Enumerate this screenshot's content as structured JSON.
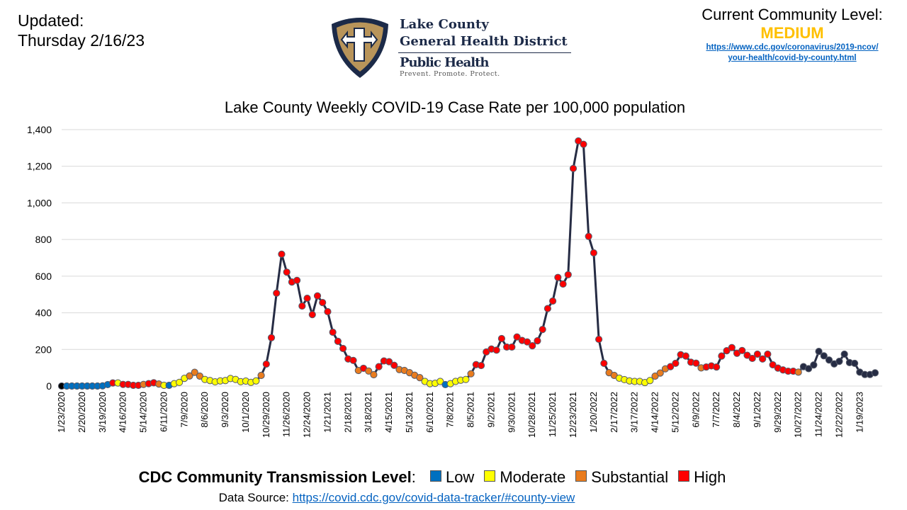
{
  "header": {
    "updated_label": "Updated:",
    "updated_date": "Thursday 2/16/23",
    "logo": {
      "line1": "Lake County",
      "line2": "General Health District",
      "line3": "Public Health",
      "tagline": "Prevent. Promote. Protect.",
      "colors": {
        "navy": "#1c2a48",
        "gold": "#b8945a"
      }
    },
    "community_level_label": "Current Community Level:",
    "community_level_value": "MEDIUM",
    "community_level_color": "#FFC000",
    "cdc_link_line1": "https://www.cdc.gov/coronavirus/2019-ncov/",
    "cdc_link_line2": "your-health/covid-by-county.html"
  },
  "legend": {
    "title": "CDC Community Transmission Level",
    "colon": ":",
    "items": [
      {
        "label": "Low",
        "color": "#0070C0"
      },
      {
        "label": "Moderate",
        "color": "#FFFF00"
      },
      {
        "label": "Substantial",
        "color": "#E97C1E"
      },
      {
        "label": "High",
        "color": "#FF0000"
      }
    ]
  },
  "source": {
    "label": "Data Source: ",
    "link": "https://covid.cdc.gov/covid-data-tracker/#county-view"
  },
  "chart_data": {
    "type": "line",
    "title": "Lake County Weekly COVID-19 Case Rate per 100,000 population",
    "xlabel": "",
    "ylabel": "",
    "ylim": [
      0,
      1400
    ],
    "yticks": [
      "0",
      "200",
      "400",
      "600",
      "800",
      "1,000",
      "1,200",
      "1,400"
    ],
    "ytick_values": [
      0,
      200,
      400,
      600,
      800,
      1000,
      1200,
      1400
    ],
    "grid": "horizontal",
    "line_color": "#262C44",
    "level_colors": {
      "Low": "#0070C0",
      "Moderate": "#FFFF00",
      "Substantial": "#E97C1E",
      "High": "#FF0000",
      "Initial": "#000000",
      "Unassigned": "#262C44"
    },
    "xticks": [
      "1/23/2020",
      "2/20/2020",
      "3/19/2020",
      "4/16/2020",
      "5/14/2020",
      "6/11/2020",
      "7/9/2020",
      "8/6/2020",
      "9/3/2020",
      "10/1/2020",
      "10/29/2020",
      "11/26/2020",
      "12/24/2020",
      "1/21/2021",
      "2/18/2021",
      "3/18/2021",
      "4/15/2021",
      "5/13/2021",
      "6/10/2021",
      "7/8/2021",
      "8/5/2021",
      "9/2/2021",
      "9/30/2021",
      "10/28/2021",
      "11/25/2021",
      "12/23/2021",
      "1/20/2022",
      "2/17/2022",
      "3/17/2022",
      "4/14/2022",
      "5/12/2022",
      "6/9/2022",
      "7/7/2022",
      "8/4/2022",
      "9/1/2022",
      "9/29/2022",
      "10/27/2022",
      "11/24/2022",
      "12/22/2022",
      "1/19/2023"
    ],
    "x": [
      "1/23/2020",
      "1/30/2020",
      "2/6/2020",
      "2/13/2020",
      "2/20/2020",
      "2/27/2020",
      "3/5/2020",
      "3/12/2020",
      "3/19/2020",
      "3/26/2020",
      "4/2/2020",
      "4/9/2020",
      "4/16/2020",
      "4/23/2020",
      "4/30/2020",
      "5/7/2020",
      "5/14/2020",
      "5/21/2020",
      "5/28/2020",
      "6/4/2020",
      "6/11/2020",
      "6/18/2020",
      "6/25/2020",
      "7/2/2020",
      "7/9/2020",
      "7/16/2020",
      "7/23/2020",
      "7/30/2020",
      "8/6/2020",
      "8/13/2020",
      "8/20/2020",
      "8/27/2020",
      "9/3/2020",
      "9/10/2020",
      "9/17/2020",
      "9/24/2020",
      "10/1/2020",
      "10/8/2020",
      "10/15/2020",
      "10/22/2020",
      "10/29/2020",
      "11/5/2020",
      "11/12/2020",
      "11/19/2020",
      "11/26/2020",
      "12/3/2020",
      "12/10/2020",
      "12/17/2020",
      "12/24/2020",
      "12/31/2020",
      "1/7/2021",
      "1/14/2021",
      "1/21/2021",
      "1/28/2021",
      "2/4/2021",
      "2/11/2021",
      "2/18/2021",
      "2/25/2021",
      "3/4/2021",
      "3/11/2021",
      "3/18/2021",
      "3/25/2021",
      "4/1/2021",
      "4/8/2021",
      "4/15/2021",
      "4/22/2021",
      "4/29/2021",
      "5/6/2021",
      "5/13/2021",
      "5/20/2021",
      "5/27/2021",
      "6/3/2021",
      "6/10/2021",
      "6/17/2021",
      "6/24/2021",
      "7/1/2021",
      "7/8/2021",
      "7/15/2021",
      "7/22/2021",
      "7/29/2021",
      "8/5/2021",
      "8/12/2021",
      "8/19/2021",
      "8/26/2021",
      "9/2/2021",
      "9/9/2021",
      "9/16/2021",
      "9/23/2021",
      "9/30/2021",
      "10/7/2021",
      "10/14/2021",
      "10/21/2021",
      "10/28/2021",
      "11/4/2021",
      "11/11/2021",
      "11/18/2021",
      "11/25/2021",
      "12/2/2021",
      "12/9/2021",
      "12/16/2021",
      "12/23/2021",
      "12/30/2021",
      "1/6/2022",
      "1/13/2022",
      "1/20/2022",
      "1/27/2022",
      "2/3/2022",
      "2/10/2022",
      "2/17/2022",
      "2/24/2022",
      "3/3/2022",
      "3/10/2022",
      "3/17/2022",
      "3/24/2022",
      "3/31/2022",
      "4/7/2022",
      "4/14/2022",
      "4/21/2022",
      "4/28/2022",
      "5/5/2022",
      "5/12/2022",
      "5/19/2022",
      "5/26/2022",
      "6/2/2022",
      "6/9/2022",
      "6/16/2022",
      "6/23/2022",
      "6/30/2022",
      "7/7/2022",
      "7/14/2022",
      "7/21/2022",
      "7/28/2022",
      "8/4/2022",
      "8/11/2022",
      "8/18/2022",
      "8/25/2022",
      "9/1/2022",
      "9/8/2022",
      "9/15/2022",
      "9/22/2022",
      "9/29/2022",
      "10/6/2022",
      "10/13/2022",
      "10/20/2022",
      "10/27/2022",
      "11/3/2022",
      "11/10/2022",
      "11/17/2022",
      "11/24/2022",
      "12/1/2022",
      "12/8/2022",
      "12/15/2022",
      "12/22/2022",
      "12/29/2022",
      "1/5/2023",
      "1/12/2023",
      "1/19/2023",
      "1/26/2023",
      "2/2/2023",
      "2/9/2023"
    ],
    "values": [
      0,
      0,
      0,
      0,
      0,
      0,
      0,
      0,
      1,
      8,
      17,
      17,
      9,
      9,
      4,
      4,
      9,
      13,
      18,
      11,
      4,
      4,
      13,
      20,
      42,
      55,
      75,
      54,
      36,
      30,
      23,
      28,
      30,
      41,
      36,
      24,
      27,
      20,
      28,
      58,
      120,
      264,
      507,
      720,
      622,
      568,
      577,
      437,
      479,
      390,
      492,
      456,
      406,
      294,
      244,
      205,
      148,
      140,
      85,
      97,
      82,
      62,
      106,
      137,
      133,
      113,
      90,
      85,
      73,
      59,
      46,
      25,
      13,
      15,
      25,
      8,
      13,
      25,
      32,
      36,
      67,
      117,
      112,
      186,
      202,
      196,
      259,
      213,
      213,
      268,
      249,
      241,
      220,
      247,
      309,
      423,
      464,
      593,
      557,
      608,
      1188,
      1338,
      1320,
      817,
      727,
      255,
      124,
      73,
      58,
      43,
      35,
      28,
      25,
      25,
      19,
      30,
      54,
      71,
      94,
      106,
      124,
      171,
      164,
      130,
      125,
      99,
      104,
      110,
      104,
      164,
      193,
      210,
      179,
      194,
      168,
      151,
      174,
      148,
      174,
      116,
      98,
      88,
      81,
      81,
      76,
      106,
      95,
      115,
      189,
      165,
      142,
      121,
      135,
      174,
      128,
      124,
      76,
      63,
      63,
      72
    ],
    "levels": [
      "Initial",
      "Low",
      "Low",
      "Low",
      "Low",
      "Low",
      "Low",
      "Low",
      "Low",
      "Low",
      "High",
      "Moderate",
      "High",
      "High",
      "High",
      "High",
      "Substantial",
      "High",
      "High",
      "Substantial",
      "Moderate",
      "Low",
      "Moderate",
      "Moderate",
      "Moderate",
      "Substantial",
      "Substantial",
      "Substantial",
      "Moderate",
      "Moderate",
      "Moderate",
      "Moderate",
      "Moderate",
      "Moderate",
      "Moderate",
      "Moderate",
      "Moderate",
      "Moderate",
      "Moderate",
      "Substantial",
      "High",
      "High",
      "High",
      "High",
      "High",
      "High",
      "High",
      "High",
      "High",
      "High",
      "High",
      "High",
      "High",
      "High",
      "High",
      "High",
      "High",
      "High",
      "Substantial",
      "High",
      "Substantial",
      "Substantial",
      "High",
      "High",
      "High",
      "High",
      "Substantial",
      "Substantial",
      "Substantial",
      "Substantial",
      "Substantial",
      "Moderate",
      "Moderate",
      "Moderate",
      "Moderate",
      "Low",
      "Moderate",
      "Moderate",
      "Moderate",
      "Moderate",
      "Substantial",
      "High",
      "High",
      "High",
      "High",
      "High",
      "High",
      "High",
      "High",
      "High",
      "High",
      "High",
      "High",
      "High",
      "High",
      "High",
      "High",
      "High",
      "High",
      "High",
      "High",
      "High",
      "High",
      "High",
      "High",
      "High",
      "High",
      "Substantial",
      "Substantial",
      "Moderate",
      "Moderate",
      "Moderate",
      "Moderate",
      "Moderate",
      "Moderate",
      "Moderate",
      "Substantial",
      "Substantial",
      "Substantial",
      "High",
      "High",
      "High",
      "High",
      "High",
      "High",
      "Substantial",
      "High",
      "High",
      "High",
      "High",
      "High",
      "High",
      "High",
      "High",
      "High",
      "High",
      "High",
      "High",
      "High",
      "High",
      "High",
      "High",
      "High",
      "High",
      "Substantial",
      "Unassigned",
      "Unassigned",
      "Unassigned",
      "Unassigned",
      "Unassigned",
      "Unassigned",
      "Unassigned",
      "Unassigned",
      "Unassigned",
      "Unassigned",
      "Unassigned",
      "Unassigned",
      "Unassigned",
      "Unassigned",
      "Unassigned"
    ]
  }
}
